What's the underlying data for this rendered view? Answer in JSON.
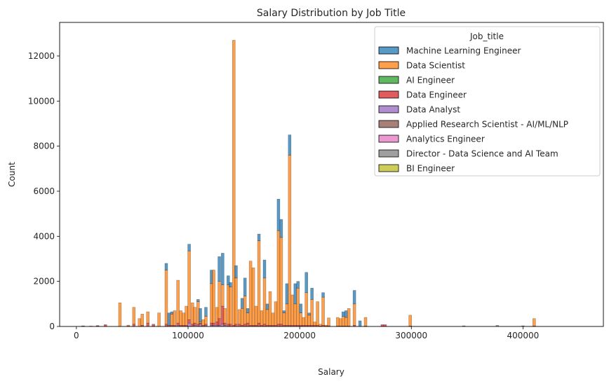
{
  "chart_data": {
    "type": "bar",
    "subtype": "stacked-histogram",
    "title": "Salary Distribution by Job Title",
    "xlabel": "Salary",
    "ylabel": "Count",
    "xlim": [
      -15000,
      472000
    ],
    "ylim": [
      0,
      13490
    ],
    "xticks": [
      0,
      100000,
      200000,
      300000,
      400000
    ],
    "xtick_labels": [
      "0",
      "100000",
      "200000",
      "300000",
      "400000"
    ],
    "yticks": [
      0,
      2000,
      4000,
      6000,
      8000,
      10000,
      12000
    ],
    "ytick_labels": [
      "0",
      "2000",
      "4000",
      "6000",
      "8000",
      "10000",
      "12000"
    ],
    "bin_width": 2500,
    "grid": false,
    "legend": {
      "title": "Job_title",
      "placement": "top-right",
      "entries": [
        "Machine Learning Engineer",
        "Data Scientist",
        "AI Engineer",
        "Data Engineer",
        "Data Analyst",
        "Applied Research Scientist - AI/ML/NLP",
        "Analytics Engineer",
        "Director - Data Science and AI Team",
        "BI Engineer"
      ]
    },
    "colors": [
      "#1f77b4",
      "#ff7f0e",
      "#2ca02c",
      "#d62728",
      "#9467bd",
      "#8c564b",
      "#e377c2",
      "#7f7f7f",
      "#bcbd22"
    ],
    "bins_columns": [
      "salary_bin_center",
      "Machine Learning Engineer",
      "Data Scientist",
      "AI Engineer",
      "Data Engineer",
      "Data Analyst",
      "Applied Research Scientist - AI/ML/NLP",
      "Analytics Engineer",
      "Director - Data Science and AI Team",
      "BI Engineer"
    ],
    "bins": [
      [
        6000,
        0,
        0,
        0,
        0,
        20,
        0,
        0,
        10,
        0
      ],
      [
        13000,
        0,
        0,
        0,
        0,
        20,
        0,
        0,
        0,
        0
      ],
      [
        19000,
        0,
        0,
        0,
        20,
        20,
        0,
        0,
        0,
        0
      ],
      [
        26000,
        0,
        0,
        0,
        80,
        0,
        0,
        0,
        0,
        0
      ],
      [
        39000,
        0,
        1050,
        0,
        0,
        0,
        0,
        0,
        0,
        0
      ],
      [
        46500,
        0,
        40,
        0,
        20,
        0,
        0,
        0,
        0,
        0
      ],
      [
        51500,
        0,
        750,
        0,
        100,
        0,
        0,
        0,
        0,
        0
      ],
      [
        56500,
        0,
        350,
        0,
        0,
        0,
        0,
        0,
        0,
        0
      ],
      [
        59000,
        0,
        500,
        0,
        50,
        0,
        0,
        0,
        0,
        0
      ],
      [
        64000,
        0,
        500,
        0,
        150,
        0,
        0,
        0,
        0,
        0
      ],
      [
        69000,
        0,
        0,
        0,
        100,
        0,
        0,
        0,
        0,
        0
      ],
      [
        74000,
        0,
        600,
        0,
        0,
        0,
        0,
        0,
        0,
        0
      ],
      [
        80500,
        300,
        2400,
        0,
        100,
        0,
        0,
        0,
        0,
        0
      ],
      [
        83000,
        550,
        0,
        0,
        50,
        0,
        0,
        0,
        0,
        0
      ],
      [
        85500,
        100,
        500,
        0,
        50,
        0,
        0,
        0,
        0,
        0
      ],
      [
        88000,
        0,
        650,
        0,
        50,
        0,
        0,
        0,
        0,
        0
      ],
      [
        91000,
        0,
        1900,
        0,
        100,
        50,
        0,
        0,
        0,
        0
      ],
      [
        93500,
        0,
        650,
        0,
        50,
        0,
        0,
        0,
        0,
        0
      ],
      [
        96000,
        0,
        550,
        0,
        50,
        0,
        0,
        0,
        0,
        0
      ],
      [
        98500,
        0,
        850,
        0,
        50,
        0,
        0,
        0,
        0,
        0
      ],
      [
        101000,
        300,
        3050,
        0,
        150,
        150,
        0,
        0,
        0,
        0
      ],
      [
        104000,
        0,
        950,
        0,
        100,
        0,
        0,
        0,
        0,
        0
      ],
      [
        106000,
        0,
        700,
        0,
        100,
        50,
        0,
        0,
        0,
        0
      ],
      [
        109000,
        100,
        1000,
        0,
        100,
        0,
        0,
        0,
        0,
        0
      ],
      [
        111000,
        600,
        50,
        0,
        50,
        100,
        0,
        0,
        0,
        0
      ],
      [
        113500,
        0,
        250,
        0,
        50,
        0,
        0,
        0,
        0,
        0
      ],
      [
        116000,
        400,
        350,
        0,
        50,
        50,
        0,
        0,
        0,
        0
      ],
      [
        121000,
        600,
        1750,
        0,
        100,
        50,
        0,
        0,
        0,
        0
      ],
      [
        123000,
        0,
        2350,
        0,
        100,
        50,
        0,
        0,
        0,
        0
      ],
      [
        126000,
        0,
        650,
        0,
        150,
        50,
        0,
        0,
        0,
        0
      ],
      [
        128000,
        1100,
        1650,
        0,
        300,
        50,
        0,
        0,
        0,
        0
      ],
      [
        131000,
        1400,
        950,
        0,
        800,
        100,
        0,
        0,
        0,
        0
      ],
      [
        133000,
        0,
        650,
        0,
        100,
        50,
        0,
        0,
        0,
        0
      ],
      [
        136000,
        400,
        1750,
        0,
        100,
        0,
        0,
        0,
        0,
        0
      ],
      [
        138000,
        200,
        1650,
        0,
        100,
        0,
        0,
        0,
        0,
        0
      ],
      [
        141000,
        0,
        12650,
        0,
        50,
        0,
        0,
        0,
        0,
        0
      ],
      [
        143000,
        550,
        2050,
        0,
        100,
        0,
        0,
        0,
        0,
        0
      ],
      [
        146000,
        0,
        650,
        0,
        100,
        0,
        0,
        0,
        0,
        0
      ],
      [
        148500,
        450,
        750,
        0,
        50,
        0,
        0,
        0,
        0,
        0
      ],
      [
        151000,
        800,
        1250,
        0,
        100,
        0,
        0,
        0,
        0,
        0
      ],
      [
        153500,
        200,
        450,
        0,
        150,
        0,
        0,
        0,
        0,
        0
      ],
      [
        156000,
        0,
        2850,
        0,
        50,
        0,
        0,
        0,
        0,
        0
      ],
      [
        158500,
        0,
        2550,
        0,
        50,
        0,
        0,
        0,
        0,
        0
      ],
      [
        161000,
        0,
        850,
        0,
        50,
        0,
        0,
        0,
        0,
        0
      ],
      [
        163500,
        300,
        3650,
        0,
        150,
        0,
        0,
        0,
        0,
        0
      ],
      [
        166000,
        0,
        650,
        0,
        50,
        0,
        0,
        0,
        0,
        0
      ],
      [
        168500,
        800,
        2050,
        0,
        100,
        0,
        0,
        0,
        0,
        0
      ],
      [
        171000,
        250,
        700,
        0,
        50,
        0,
        0,
        0,
        0,
        0
      ],
      [
        173500,
        0,
        1500,
        0,
        50,
        0,
        0,
        0,
        0,
        0
      ],
      [
        176000,
        0,
        550,
        0,
        50,
        0,
        0,
        0,
        0,
        0
      ],
      [
        178500,
        0,
        1050,
        0,
        50,
        0,
        0,
        0,
        0,
        0
      ],
      [
        181000,
        1400,
        4150,
        0,
        100,
        0,
        0,
        0,
        0,
        0
      ],
      [
        183500,
        800,
        3850,
        0,
        100,
        0,
        0,
        0,
        0,
        0
      ],
      [
        186000,
        100,
        550,
        0,
        50,
        0,
        0,
        0,
        0,
        0
      ],
      [
        188500,
        900,
        950,
        0,
        50,
        0,
        0,
        0,
        0,
        0
      ],
      [
        191000,
        900,
        7550,
        0,
        50,
        0,
        0,
        0,
        0,
        0
      ],
      [
        193500,
        0,
        1350,
        0,
        50,
        0,
        0,
        0,
        0,
        0
      ],
      [
        196000,
        900,
        950,
        0,
        50,
        0,
        0,
        0,
        0,
        0
      ],
      [
        198500,
        300,
        1650,
        0,
        50,
        0,
        0,
        0,
        0,
        0
      ],
      [
        201000,
        400,
        550,
        0,
        50,
        0,
        0,
        0,
        0,
        0
      ],
      [
        203500,
        0,
        350,
        0,
        50,
        0,
        0,
        0,
        0,
        0
      ],
      [
        206000,
        900,
        1450,
        0,
        50,
        0,
        0,
        0,
        0,
        0
      ],
      [
        208500,
        100,
        450,
        0,
        50,
        0,
        0,
        0,
        0,
        0
      ],
      [
        211000,
        500,
        1150,
        0,
        50,
        0,
        0,
        0,
        0,
        0
      ],
      [
        213500,
        0,
        150,
        0,
        50,
        0,
        0,
        0,
        0,
        0
      ],
      [
        216000,
        0,
        1050,
        0,
        50,
        0,
        0,
        0,
        0,
        0
      ],
      [
        218500,
        0,
        80,
        0,
        20,
        0,
        0,
        0,
        0,
        0
      ],
      [
        221000,
        200,
        1250,
        0,
        50,
        0,
        0,
        0,
        0,
        0
      ],
      [
        223500,
        0,
        40,
        0,
        20,
        0,
        0,
        0,
        0,
        0
      ],
      [
        226000,
        0,
        350,
        0,
        30,
        0,
        0,
        0,
        0,
        0
      ],
      [
        234000,
        0,
        380,
        0,
        20,
        0,
        0,
        0,
        0,
        0
      ],
      [
        236500,
        0,
        330,
        0,
        20,
        0,
        0,
        0,
        0,
        0
      ],
      [
        239000,
        200,
        430,
        0,
        20,
        0,
        0,
        0,
        0,
        0
      ],
      [
        241500,
        300,
        380,
        0,
        20,
        0,
        0,
        0,
        0,
        0
      ],
      [
        244000,
        0,
        780,
        0,
        20,
        0,
        0,
        0,
        0,
        0
      ],
      [
        249000,
        600,
        950,
        0,
        50,
        0,
        0,
        0,
        0,
        0
      ],
      [
        254000,
        250,
        0,
        0,
        0,
        0,
        0,
        0,
        0,
        0
      ],
      [
        259000,
        0,
        380,
        0,
        20,
        0,
        0,
        0,
        0,
        0
      ],
      [
        274000,
        0,
        0,
        0,
        80,
        0,
        0,
        0,
        0,
        0
      ],
      [
        276500,
        0,
        0,
        0,
        80,
        0,
        0,
        0,
        0,
        0
      ],
      [
        299000,
        0,
        480,
        0,
        20,
        0,
        0,
        0,
        0,
        0
      ],
      [
        347000,
        0,
        0,
        0,
        0,
        0,
        0,
        0,
        30,
        0
      ],
      [
        377000,
        0,
        0,
        0,
        0,
        0,
        0,
        0,
        50,
        0
      ],
      [
        400000,
        0,
        0,
        0,
        0,
        0,
        0,
        0,
        30,
        0
      ],
      [
        410000,
        0,
        330,
        0,
        20,
        0,
        0,
        0,
        0,
        0
      ]
    ]
  }
}
